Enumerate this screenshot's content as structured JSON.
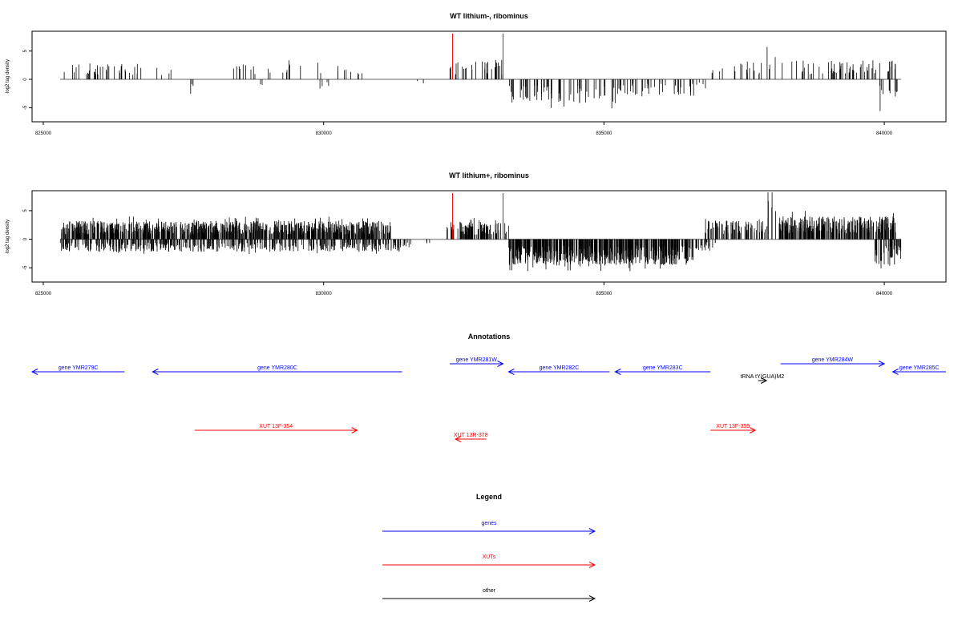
{
  "chart_data": [
    {
      "type": "bar",
      "title": "WT lithium-, ribominus",
      "ylabel": "log2 tag density",
      "xlim": [
        824800,
        841100
      ],
      "ylim": [
        -7.5,
        8.5
      ],
      "xticks": [
        825000,
        830000,
        835000,
        840000
      ],
      "xtick_labels": [
        "825000",
        "830000",
        "835000",
        "840000"
      ],
      "yticks": [
        -5,
        0,
        5
      ],
      "ytick_labels": [
        "-5",
        "0",
        "5"
      ],
      "baseline": [
        825300,
        840300
      ],
      "markers": [
        832300,
        833200
      ],
      "density": {
        "plus": [
          [
            825300,
            826700,
            0.7,
            2.8
          ],
          [
            826700,
            827400,
            0.2,
            2.5
          ],
          [
            828300,
            829400,
            0.4,
            2.8
          ],
          [
            829300,
            830700,
            0.3,
            2.5
          ],
          [
            832250,
            833200,
            0.9,
            3.5
          ],
          [
            836900,
            837800,
            0.5,
            3.3
          ],
          [
            837800,
            838200,
            0.4,
            6.5
          ],
          [
            838300,
            840200,
            0.9,
            3.5
          ]
        ],
        "minus": [
          [
            827500,
            827700,
            0.4,
            -3.2
          ],
          [
            828800,
            829000,
            0.3,
            -1.2
          ],
          [
            829900,
            830200,
            0.4,
            -1.8
          ],
          [
            831600,
            831800,
            0.3,
            -1.2
          ],
          [
            833300,
            835300,
            1.0,
            -4.2
          ],
          [
            835300,
            836700,
            0.8,
            -3.0
          ],
          [
            836700,
            837000,
            0.3,
            -2.2
          ],
          [
            839900,
            840300,
            0.8,
            -4.5
          ]
        ]
      },
      "seed": 7
    },
    {
      "type": "bar",
      "title": "WT lithium+, ribominus",
      "ylabel": "log2 tag density",
      "xlim": [
        824800,
        841100
      ],
      "ylim": [
        -7.5,
        8.5
      ],
      "xticks": [
        825000,
        830000,
        835000,
        840000
      ],
      "xtick_labels": [
        "825000",
        "830000",
        "835000",
        "840000"
      ],
      "yticks": [
        -5,
        0,
        5
      ],
      "ytick_labels": [
        "-5",
        "0",
        "5"
      ],
      "baseline": [
        825300,
        840300
      ],
      "markers": [
        832300,
        833200
      ],
      "density": {
        "plus": [
          [
            825300,
            831200,
            4.0,
            3.2
          ],
          [
            832200,
            833300,
            3.0,
            3.3
          ],
          [
            836800,
            837900,
            2.0,
            3.5
          ],
          [
            837900,
            838100,
            1.0,
            8.0
          ],
          [
            838100,
            840200,
            4.0,
            4.0
          ]
        ],
        "minus": [
          [
            825300,
            831500,
            2.0,
            -2.2
          ],
          [
            831500,
            832000,
            0.3,
            -1.5
          ],
          [
            833300,
            836600,
            4.5,
            -4.5
          ],
          [
            836600,
            837000,
            1.5,
            -2.0
          ],
          [
            839800,
            840300,
            2.5,
            -4.5
          ]
        ]
      },
      "seed": 23
    }
  ],
  "annotations": {
    "title": "Annotations",
    "colors": {
      "gene": "#0000ff",
      "xut": "#ff0000",
      "other": "#000000"
    },
    "features": [
      {
        "label": "gene YMR279C",
        "kind": "gene",
        "start": 824800,
        "end": 826450,
        "strand": "-",
        "row": 1
      },
      {
        "label": "gene YMR280C",
        "kind": "gene",
        "start": 826950,
        "end": 831400,
        "strand": "-",
        "row": 1
      },
      {
        "label": "gene YMR281W",
        "kind": "gene",
        "start": 832250,
        "end": 833200,
        "strand": "+",
        "row": 0
      },
      {
        "label": "gene YMR282C",
        "kind": "gene",
        "start": 833300,
        "end": 835100,
        "strand": "-",
        "row": 1
      },
      {
        "label": "gene YMR283C",
        "kind": "gene",
        "start": 835200,
        "end": 836900,
        "strand": "-",
        "row": 1
      },
      {
        "label": "tRNA tY(GUA)M2",
        "kind": "other",
        "start": 837750,
        "end": 837900,
        "strand": "+",
        "row": 2
      },
      {
        "label": "gene YMR284W",
        "kind": "gene",
        "start": 838150,
        "end": 840000,
        "strand": "+",
        "row": 0
      },
      {
        "label": "gene YMR285C",
        "kind": "gene",
        "start": 840150,
        "end": 841100,
        "strand": "-",
        "row": 1
      },
      {
        "label": "XUT 13F-354",
        "kind": "xut",
        "start": 827700,
        "end": 830600,
        "strand": "+",
        "row": 3
      },
      {
        "label": "XUT 13R-378",
        "kind": "xut",
        "start": 832350,
        "end": 832900,
        "strand": "-",
        "row": 4
      },
      {
        "label": "XUT 13F-359",
        "kind": "xut",
        "start": 836900,
        "end": 837700,
        "strand": "+",
        "row": 3
      }
    ]
  },
  "legend": {
    "title": "Legend",
    "items": [
      {
        "label": "genes",
        "color": "#0000ff"
      },
      {
        "label": "XUTs",
        "color": "#ff0000"
      },
      {
        "label": "other",
        "color": "#000000"
      }
    ]
  }
}
